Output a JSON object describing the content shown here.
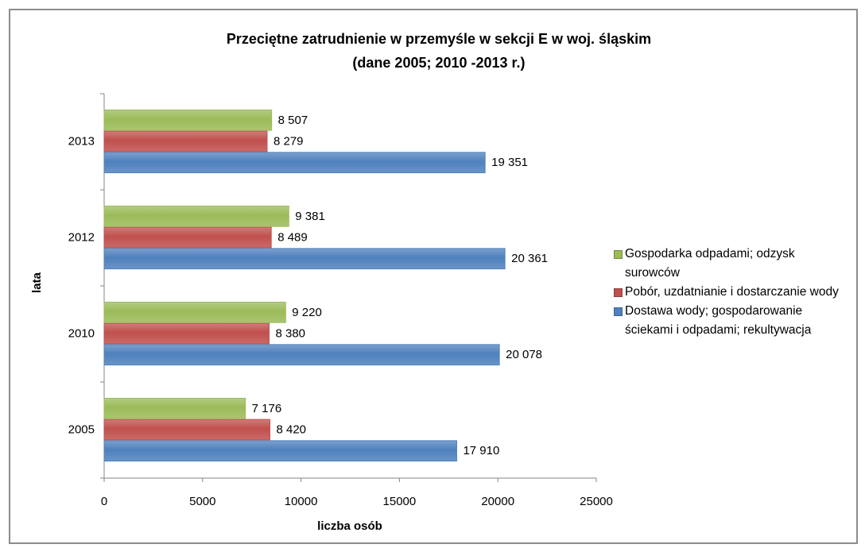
{
  "chart_data": {
    "type": "bar",
    "orientation": "horizontal",
    "title": "Przeciętne zatrudnienie w przemyśle w sekcji E w woj. śląskim",
    "subtitle": "(dane 2005; 2010 -2013 r.)",
    "x_label": "liczba osób",
    "y_label": "lata",
    "categories": [
      "2005",
      "2010",
      "2012",
      "2013"
    ],
    "series": [
      {
        "name": "Dostawa wody; gospodarowanie ściekami i odpadami; rekultywacja",
        "color": "#4f81bd",
        "values": [
          17910,
          20078,
          20361,
          19351
        ],
        "value_labels": [
          "17 910",
          "20 078",
          "20 361",
          "19 351"
        ]
      },
      {
        "name": "Pobór, uzdatnianie i dostarczanie wody",
        "color": "#c0504d",
        "values": [
          8420,
          8380,
          8489,
          8279
        ],
        "value_labels": [
          "8 420",
          "8 380",
          "8 489",
          "8 279"
        ]
      },
      {
        "name": "Gospodarka odpadami; odzysk surowców",
        "color": "#9bbb59",
        "values": [
          7176,
          9220,
          9381,
          8507
        ],
        "value_labels": [
          "7 176",
          "9 220",
          "9 381",
          "8 507"
        ]
      }
    ],
    "xlim": [
      0,
      25000
    ],
    "xticks": [
      0,
      5000,
      10000,
      15000,
      20000,
      25000
    ],
    "grid": false,
    "legend": "right"
  }
}
